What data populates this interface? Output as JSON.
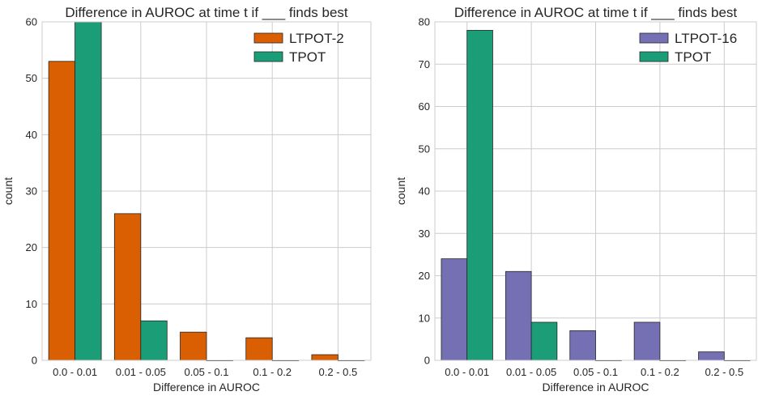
{
  "chart_data": [
    {
      "type": "bar",
      "title": "Difference in AUROC at time t if ___ finds best",
      "xlabel": "Difference in AUROC",
      "ylabel": "count",
      "categories": [
        "0.0 - 0.01",
        "0.01 - 0.05",
        "0.05 - 0.1",
        "0.1 - 0.2",
        "0.2 - 0.5"
      ],
      "ylim": [
        0,
        60
      ],
      "yticks": [
        0,
        10,
        20,
        30,
        40,
        50,
        60
      ],
      "grid": true,
      "legend": "top-right",
      "series": [
        {
          "name": "LTPOT-2",
          "color": "#d95f02",
          "values": [
            53,
            26,
            5,
            4,
            1
          ]
        },
        {
          "name": "TPOT",
          "color": "#1b9e77",
          "values": [
            60,
            7,
            0,
            0,
            0
          ]
        }
      ]
    },
    {
      "type": "bar",
      "title": "Difference in AUROC at time t if ___ finds best",
      "xlabel": "Difference in AUROC",
      "ylabel": "count",
      "categories": [
        "0.0 - 0.01",
        "0.01 - 0.05",
        "0.05 - 0.1",
        "0.1 - 0.2",
        "0.2 - 0.5"
      ],
      "ylim": [
        0,
        80
      ],
      "yticks": [
        0,
        10,
        20,
        30,
        40,
        50,
        60,
        70,
        80
      ],
      "grid": true,
      "legend": "top-right",
      "series": [
        {
          "name": "LTPOT-16",
          "color": "#7570b3",
          "values": [
            24,
            21,
            7,
            9,
            2
          ]
        },
        {
          "name": "TPOT",
          "color": "#1b9e77",
          "values": [
            78,
            9,
            0,
            0,
            0
          ]
        }
      ]
    }
  ]
}
